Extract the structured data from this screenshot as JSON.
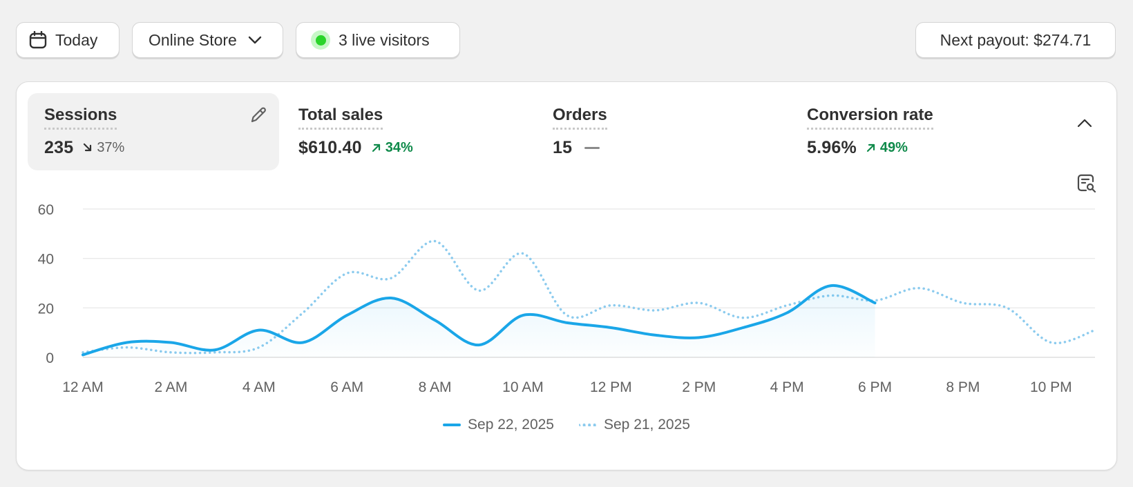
{
  "toolbar": {
    "date_label": "Today",
    "channel_label": "Online Store",
    "live_visitors_label": "3 live visitors",
    "payout_label": "Next payout: $274.71"
  },
  "metrics": [
    {
      "title": "Sessions",
      "value": "235",
      "delta": "37%",
      "trend": "down",
      "selected": true
    },
    {
      "title": "Total sales",
      "value": "$610.40",
      "delta": "34%",
      "trend": "up",
      "selected": false
    },
    {
      "title": "Orders",
      "value": "15",
      "delta": "",
      "trend": "flat",
      "selected": false
    },
    {
      "title": "Conversion rate",
      "value": "5.96%",
      "delta": "49%",
      "trend": "up",
      "selected": false
    }
  ],
  "colors": {
    "accent": "#1aa6e8",
    "comparison": "#8ccbee",
    "positive": "#0f8a4a",
    "live": "#2ad42a"
  },
  "icons": {
    "date": "calendar-icon",
    "channel": "chevron-down-icon",
    "edit": "pencil-icon",
    "collapse": "chevron-up-icon",
    "zoom": "search-report-icon"
  },
  "chart_data": {
    "type": "line",
    "x_unit": "hour",
    "xlim": [
      0,
      23
    ],
    "ylim": [
      0,
      60
    ],
    "yticks": [
      "0",
      "20",
      "40",
      "60"
    ],
    "xtick_values": [
      0,
      2,
      4,
      6,
      8,
      10,
      12,
      14,
      16,
      18,
      20,
      22
    ],
    "xticks": [
      "12 AM",
      "2 AM",
      "4 AM",
      "6 AM",
      "8 AM",
      "10 AM",
      "12 PM",
      "2 PM",
      "4 PM",
      "6 PM",
      "8 PM",
      "10 PM"
    ],
    "grid": true,
    "legend_position": "bottom",
    "series": [
      {
        "name": "Sep 22, 2025",
        "style": "solid",
        "x": [
          0,
          1,
          2,
          3,
          4,
          5,
          6,
          7,
          8,
          9,
          10,
          11,
          12,
          13,
          14,
          15,
          16,
          17,
          18
        ],
        "values": [
          1,
          6,
          6,
          3,
          11,
          6,
          17,
          24,
          15,
          5,
          17,
          14,
          12,
          9,
          8,
          12,
          18,
          29,
          22
        ]
      },
      {
        "name": "Sep 21, 2025",
        "style": "dotted",
        "x": [
          0,
          1,
          2,
          3,
          4,
          5,
          6,
          7,
          8,
          9,
          10,
          11,
          12,
          13,
          14,
          15,
          16,
          17,
          18,
          19,
          20,
          21,
          22,
          23
        ],
        "values": [
          2,
          4,
          2,
          2,
          4,
          18,
          34,
          32,
          47,
          27,
          42,
          17,
          21,
          19,
          22,
          16,
          21,
          25,
          23,
          28,
          22,
          20,
          6,
          11
        ]
      }
    ]
  }
}
